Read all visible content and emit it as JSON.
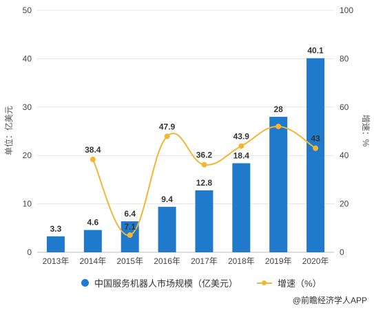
{
  "chart_data": {
    "type": "bar+line",
    "categories": [
      "2013年",
      "2014年",
      "2015年",
      "2016年",
      "2017年",
      "2018年",
      "2019年",
      "2020年"
    ],
    "series": [
      {
        "name": "中国服务机器人市场规模（亿美元）",
        "type": "bar",
        "axis": "left",
        "values": [
          3.3,
          4.6,
          6.4,
          9.4,
          12.8,
          18.4,
          28,
          40.1
        ],
        "labels": [
          "3.3",
          "4.6",
          "6.4",
          "9.4",
          "12.8",
          "18.4",
          "28",
          "40.1"
        ],
        "color": "#1f7acc"
      },
      {
        "name": "增速（%）",
        "type": "line",
        "axis": "right",
        "values": [
          null,
          38.4,
          7.1,
          47.9,
          36.2,
          43.9,
          52,
          43
        ],
        "labels": [
          "",
          "38.4",
          "7.1",
          "47.9",
          "36.2",
          "43.9",
          "",
          "43"
        ],
        "color": "#f2b632"
      }
    ],
    "ylabel": "单位：亿美元",
    "y2label": "增速：%",
    "ylim": [
      0,
      50
    ],
    "y2lim": [
      0,
      100
    ],
    "yticks": [
      "0",
      "10",
      "20",
      "30",
      "40",
      "50"
    ],
    "y2ticks": [
      "0",
      "20",
      "40",
      "60",
      "80",
      "100"
    ],
    "legend_position": "bottom",
    "grid": true
  },
  "source": "@前瞻经济学人APP"
}
